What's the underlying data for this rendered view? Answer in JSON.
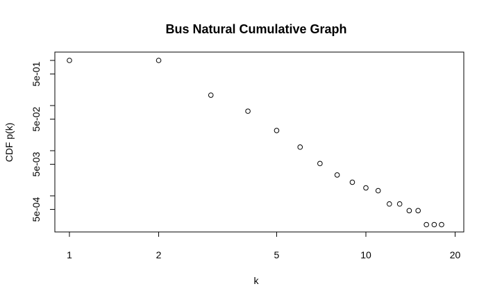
{
  "chart_data": {
    "type": "scatter",
    "title": "Bus Natural Cumulative Graph",
    "xlabel": "k",
    "ylabel": "CDF p(k)",
    "xscale": "log",
    "yscale": "log",
    "xlim": [
      1,
      20
    ],
    "ylim": [
      0.00015,
      1.3
    ],
    "x_ticks": [
      1,
      2,
      5,
      10,
      20
    ],
    "x_tick_labels": [
      "1",
      "2",
      "5",
      "10",
      "20"
    ],
    "y_ticks": [
      0.5,
      0.05,
      0.005,
      0.0005
    ],
    "y_tick_labels": [
      "5e-01",
      "5e-02",
      "5e-03",
      "5e-04"
    ],
    "y_minor_ticks": [
      1,
      0.1,
      0.01,
      0.001
    ],
    "grid": false,
    "marker": "open-circle",
    "series": [
      {
        "x": [
          1,
          2,
          3,
          4,
          5,
          6,
          7,
          8,
          9,
          10,
          11,
          12,
          13,
          14,
          15,
          16,
          17,
          18
        ],
        "y": [
          1.0,
          1.0,
          0.17,
          0.075,
          0.028,
          0.012,
          0.0052,
          0.0029,
          0.002,
          0.0015,
          0.0013,
          0.00066,
          0.00066,
          0.00047,
          0.00047,
          0.00023,
          0.00023,
          0.00023
        ]
      }
    ]
  }
}
